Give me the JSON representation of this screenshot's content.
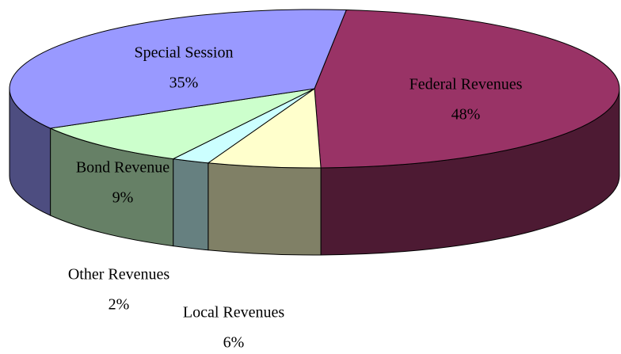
{
  "chart_data": {
    "type": "pie",
    "three_d": true,
    "categories": [
      "Federal Revenues",
      "Local Revenues",
      "Other Revenues",
      "Bond Revenue",
      "Special Session"
    ],
    "values": [
      48,
      6,
      2,
      9,
      35
    ],
    "value_labels": [
      "48%",
      "6%",
      "2%",
      "9%",
      "35%"
    ],
    "colors": [
      "#993366",
      "#ffffcc",
      "#ccffff",
      "#ccffcc",
      "#9999ff"
    ]
  }
}
